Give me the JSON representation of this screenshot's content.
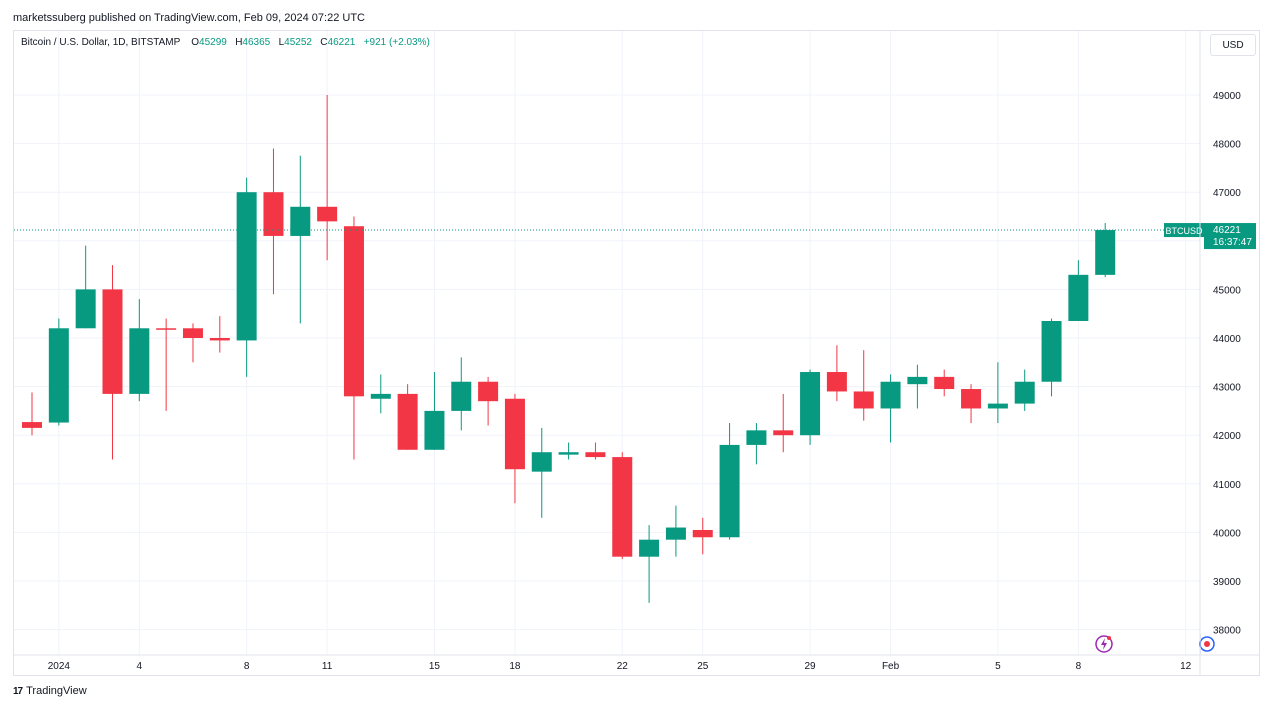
{
  "publisher_line": "marketssuberg published on TradingView.com, Feb 09, 2024 07:22 UTC",
  "legend": {
    "symbol_text": "Bitcoin / U.S. Dollar, 1D, BITSTAMP",
    "o_label": "O",
    "o_value": "45299",
    "h_label": "H",
    "h_value": "46365",
    "l_label": "L",
    "l_value": "45252",
    "c_label": "C",
    "c_value": "46221",
    "change": "+921 (+2.03%)"
  },
  "currency_button": "USD",
  "price_tag": {
    "symbol": "BTCUSD",
    "price": "46221",
    "countdown": "16:37:47"
  },
  "footer_logo": {
    "mark": "17",
    "text": "TradingView"
  },
  "icons": [
    "lightning-icon",
    "globe-icon"
  ],
  "colors": {
    "up": "#089981",
    "down": "#f23645",
    "grid": "#f0f3fa",
    "text": "#131722"
  },
  "chart_data": {
    "type": "candlestick",
    "grid": true,
    "y_axis_position": "right",
    "ylim": [
      37700,
      49800
    ],
    "y_ticks": [
      38000,
      39000,
      40000,
      41000,
      42000,
      43000,
      44000,
      45000,
      46000,
      47000,
      48000,
      49000
    ],
    "x_ticks": [
      {
        "i": 1,
        "label": "2024"
      },
      {
        "i": 4,
        "label": "4"
      },
      {
        "i": 8,
        "label": "8"
      },
      {
        "i": 11,
        "label": "11"
      },
      {
        "i": 15,
        "label": "15"
      },
      {
        "i": 18,
        "label": "18"
      },
      {
        "i": 22,
        "label": "22"
      },
      {
        "i": 25,
        "label": "25"
      },
      {
        "i": 29,
        "label": "29"
      },
      {
        "i": 32,
        "label": "Feb"
      },
      {
        "i": 36,
        "label": "5"
      },
      {
        "i": 39,
        "label": "8"
      },
      {
        "i": 43,
        "label": "12"
      }
    ],
    "last_price": 46221,
    "candles": [
      {
        "o": 42270,
        "h": 42880,
        "l": 42000,
        "c": 42150
      },
      {
        "o": 42260,
        "h": 44400,
        "l": 42200,
        "c": 44200
      },
      {
        "o": 44200,
        "h": 45900,
        "l": 44200,
        "c": 45000
      },
      {
        "o": 45000,
        "h": 45500,
        "l": 41500,
        "c": 42850
      },
      {
        "o": 42850,
        "h": 44800,
        "l": 42700,
        "c": 44200
      },
      {
        "o": 44200,
        "h": 44400,
        "l": 42500,
        "c": 44180
      },
      {
        "o": 44200,
        "h": 44300,
        "l": 43500,
        "c": 44000
      },
      {
        "o": 44000,
        "h": 44450,
        "l": 43700,
        "c": 43950
      },
      {
        "o": 43950,
        "h": 47300,
        "l": 43200,
        "c": 47000
      },
      {
        "o": 47000,
        "h": 47900,
        "l": 44900,
        "c": 46100
      },
      {
        "o": 46100,
        "h": 47750,
        "l": 44300,
        "c": 46700
      },
      {
        "o": 46700,
        "h": 49000,
        "l": 45600,
        "c": 46400
      },
      {
        "o": 46300,
        "h": 46500,
        "l": 41500,
        "c": 42800
      },
      {
        "o": 42750,
        "h": 43250,
        "l": 42450,
        "c": 42850
      },
      {
        "o": 42850,
        "h": 43050,
        "l": 41700,
        "c": 41700
      },
      {
        "o": 41700,
        "h": 43300,
        "l": 41700,
        "c": 42500
      },
      {
        "o": 42500,
        "h": 43600,
        "l": 42100,
        "c": 43100
      },
      {
        "o": 43100,
        "h": 43200,
        "l": 42200,
        "c": 42700
      },
      {
        "o": 42750,
        "h": 42850,
        "l": 40600,
        "c": 41300
      },
      {
        "o": 41250,
        "h": 42150,
        "l": 40300,
        "c": 41650
      },
      {
        "o": 41600,
        "h": 41850,
        "l": 41500,
        "c": 41650
      },
      {
        "o": 41650,
        "h": 41850,
        "l": 41500,
        "c": 41550
      },
      {
        "o": 41550,
        "h": 41650,
        "l": 39450,
        "c": 39500
      },
      {
        "o": 39500,
        "h": 40150,
        "l": 38550,
        "c": 39850
      },
      {
        "o": 39850,
        "h": 40550,
        "l": 39500,
        "c": 40100
      },
      {
        "o": 40050,
        "h": 40300,
        "l": 39550,
        "c": 39900
      },
      {
        "o": 39900,
        "h": 42250,
        "l": 39850,
        "c": 41800
      },
      {
        "o": 41800,
        "h": 42250,
        "l": 41400,
        "c": 42100
      },
      {
        "o": 42100,
        "h": 42850,
        "l": 41650,
        "c": 42000
      },
      {
        "o": 42000,
        "h": 43350,
        "l": 41800,
        "c": 43300
      },
      {
        "o": 43300,
        "h": 43850,
        "l": 42700,
        "c": 42900
      },
      {
        "o": 42900,
        "h": 43750,
        "l": 42300,
        "c": 42550
      },
      {
        "o": 42550,
        "h": 43250,
        "l": 41850,
        "c": 43100
      },
      {
        "o": 43050,
        "h": 43450,
        "l": 42550,
        "c": 43200
      },
      {
        "o": 43200,
        "h": 43350,
        "l": 42800,
        "c": 42950
      },
      {
        "o": 42950,
        "h": 43050,
        "l": 42250,
        "c": 42550
      },
      {
        "o": 42550,
        "h": 43500,
        "l": 42250,
        "c": 42650
      },
      {
        "o": 42650,
        "h": 43350,
        "l": 42500,
        "c": 43100
      },
      {
        "o": 43100,
        "h": 44400,
        "l": 42800,
        "c": 44350
      },
      {
        "o": 44350,
        "h": 45600,
        "l": 44350,
        "c": 45300
      },
      {
        "o": 45299,
        "h": 46365,
        "l": 45252,
        "c": 46221
      }
    ]
  }
}
